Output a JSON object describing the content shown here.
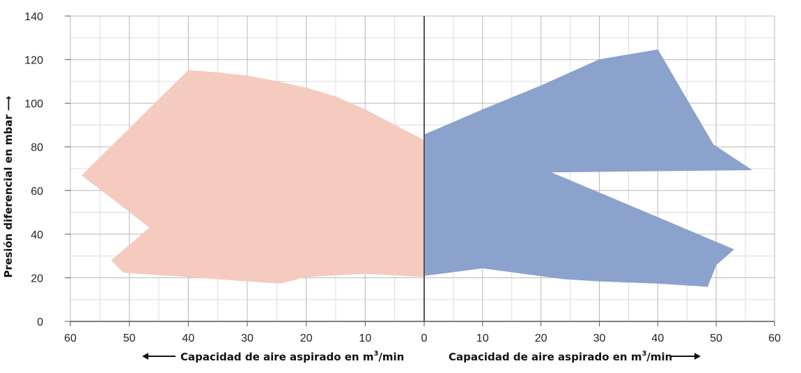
{
  "chart_data": {
    "type": "area",
    "ylabel": "Presión diferencial en mbar",
    "xlabel_left": "Capacidad de aire aspirado en m³/min",
    "xlabel_right": "Capacidad de aire aspirado en m³/min",
    "xlabel_text": "Capacidad de aire aspirado en m",
    "xlabel_sup": "3",
    "xlabel_suffix": "/min",
    "ylim": [
      0,
      140
    ],
    "yticks": [
      0,
      20,
      40,
      60,
      80,
      100,
      120,
      140
    ],
    "xlim_left": [
      60,
      0
    ],
    "xlim_right": [
      0,
      60
    ],
    "xticks": [
      60,
      50,
      40,
      30,
      20,
      10,
      0,
      10,
      20,
      30,
      40,
      50,
      60
    ],
    "grid": true,
    "series": [
      {
        "side": "left",
        "color": "#f5cbbf",
        "points": [
          [
            0,
            83
          ],
          [
            5,
            90
          ],
          [
            10,
            97
          ],
          [
            15,
            103
          ],
          [
            20,
            107
          ],
          [
            25,
            110
          ],
          [
            30,
            112.5
          ],
          [
            35,
            114
          ],
          [
            40,
            115
          ],
          [
            58,
            67
          ],
          [
            46.5,
            43
          ],
          [
            53,
            28
          ],
          [
            51,
            22.5
          ],
          [
            40,
            20.5
          ],
          [
            30,
            18.5
          ],
          [
            24.5,
            17.5
          ],
          [
            20,
            20.5
          ],
          [
            10,
            22
          ],
          [
            0,
            20.5
          ]
        ]
      },
      {
        "side": "right",
        "color": "#8aa2cc",
        "points": [
          [
            0,
            85.5
          ],
          [
            10,
            97
          ],
          [
            20,
            108
          ],
          [
            30,
            120
          ],
          [
            40,
            124.5
          ],
          [
            49.5,
            81
          ],
          [
            56,
            69.5
          ],
          [
            21.5,
            68.5
          ],
          [
            53,
            33
          ],
          [
            50,
            26
          ],
          [
            48.5,
            16
          ],
          [
            40,
            17.5
          ],
          [
            30,
            18.5
          ],
          [
            24,
            19.5
          ],
          [
            10,
            24.5
          ],
          [
            0,
            21
          ]
        ]
      }
    ]
  }
}
